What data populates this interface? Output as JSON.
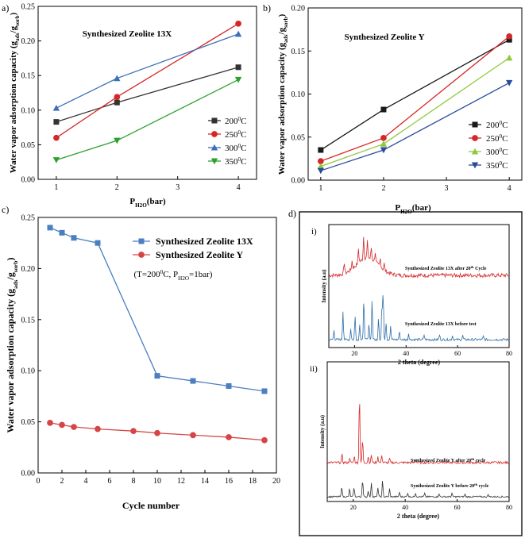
{
  "chart_data": [
    {
      "id": "a",
      "panel_label": "a)",
      "type": "line",
      "title": "Synthesized Zeolite 13X",
      "xlabel_main": "P",
      "xlabel_sub": "H2O",
      "xlabel_tail": "(bar)",
      "ylabel_main": "Water vapor adsorption capacity (g",
      "ylabel_sub1": "ads",
      "ylabel_mid": "/g",
      "ylabel_sub2": "sorb",
      "ylabel_tail": ")",
      "xlim": [
        0.7,
        4.3
      ],
      "ylim": [
        0.0,
        0.25
      ],
      "xticks": [
        1,
        2,
        3,
        4
      ],
      "yticks": [
        0.0,
        0.05,
        0.1,
        0.15,
        0.2,
        0.25
      ],
      "ytick_labels": [
        "0.00",
        "0.05",
        "0.10",
        "0.15",
        "0.20",
        "0.25"
      ],
      "legend_position": "bottom-right",
      "legend_sup": "0",
      "series": [
        {
          "name": "200",
          "unit": "C",
          "color": "#333333",
          "marker": "square",
          "x": [
            1,
            2,
            4
          ],
          "y": [
            0.083,
            0.111,
            0.162
          ]
        },
        {
          "name": "250",
          "unit": "C",
          "color": "#d62728",
          "marker": "circle",
          "x": [
            1,
            2,
            4
          ],
          "y": [
            0.06,
            0.119,
            0.225
          ]
        },
        {
          "name": "300",
          "unit": "C",
          "color": "#3c6fb6",
          "marker": "triangle-up",
          "x": [
            1,
            2,
            4
          ],
          "y": [
            0.103,
            0.146,
            0.21
          ]
        },
        {
          "name": "350",
          "unit": "C",
          "color": "#2ca02c",
          "marker": "triangle-down",
          "x": [
            1,
            2,
            4
          ],
          "y": [
            0.028,
            0.056,
            0.144
          ]
        }
      ]
    },
    {
      "id": "b",
      "panel_label": "b)",
      "type": "line",
      "title": "Synthesized Zeolite Y",
      "xlabel_main": "P",
      "xlabel_sub": "H2O",
      "xlabel_tail": "(bar)",
      "ylabel_main": "Water vapor adsorption capacity (g",
      "ylabel_sub1": "ads",
      "ylabel_mid": "/g",
      "ylabel_sub2": "sorb",
      "ylabel_tail": ")",
      "xlim": [
        0.8,
        4.2
      ],
      "ylim": [
        0.0,
        0.2
      ],
      "xticks": [
        1,
        2,
        3,
        4
      ],
      "yticks": [
        0.0,
        0.05,
        0.1,
        0.15,
        0.2
      ],
      "ytick_labels": [
        "0.00",
        "0.05",
        "0.10",
        "0.15",
        "0.20"
      ],
      "legend_position": "bottom-right",
      "legend_sup": "0",
      "series": [
        {
          "name": "200",
          "unit": "C",
          "color": "#1a1a1a",
          "marker": "square",
          "x": [
            1,
            2,
            4
          ],
          "y": [
            0.035,
            0.082,
            0.163
          ]
        },
        {
          "name": "250",
          "unit": "C",
          "color": "#d62728",
          "marker": "circle",
          "x": [
            1,
            2,
            4
          ],
          "y": [
            0.022,
            0.049,
            0.167
          ]
        },
        {
          "name": "300",
          "unit": "C",
          "color": "#8fc93a",
          "marker": "triangle-up",
          "x": [
            1,
            2,
            4
          ],
          "y": [
            0.016,
            0.042,
            0.142
          ]
        },
        {
          "name": "350",
          "unit": "C",
          "color": "#2a4b9b",
          "marker": "triangle-down",
          "x": [
            1,
            2,
            4
          ],
          "y": [
            0.011,
            0.035,
            0.113
          ]
        }
      ]
    },
    {
      "id": "c",
      "panel_label": "c)",
      "type": "line",
      "xlabel": "Cycle number",
      "ylabel_main": "Water vapor adsorption capacity (g",
      "ylabel_sub1": "ads",
      "ylabel_mid": "/g",
      "ylabel_sub2": "sorb",
      "ylabel_tail": ")",
      "xlim": [
        0,
        20
      ],
      "ylim": [
        0.0,
        0.25
      ],
      "xticks": [
        0,
        2,
        4,
        6,
        8,
        10,
        12,
        14,
        16,
        18,
        20
      ],
      "yticks": [
        0.0,
        0.05,
        0.1,
        0.15,
        0.2,
        0.25
      ],
      "ytick_labels": [
        "0.00",
        "0.05",
        "0.10",
        "0.15",
        "0.20",
        "0.25"
      ],
      "legend_position": "top-right",
      "annotation": {
        "a": "(T=200",
        "sup": "0",
        "b": "C,  P",
        "sub": "H2O",
        "c": "=1bar)"
      },
      "series": [
        {
          "name": "Synthesized Zeolite 13X",
          "color": "#4a7fc1",
          "marker": "square",
          "x": [
            1,
            2,
            3,
            5,
            10,
            13,
            16,
            19
          ],
          "y": [
            0.24,
            0.235,
            0.23,
            0.225,
            0.095,
            0.09,
            0.085,
            0.08
          ]
        },
        {
          "name": "Synthesized Zeolite Y",
          "color": "#d64545",
          "marker": "circle",
          "x": [
            1,
            2,
            3,
            5,
            8,
            10,
            13,
            16,
            19
          ],
          "y": [
            0.049,
            0.047,
            0.045,
            0.043,
            0.041,
            0.039,
            0.037,
            0.035,
            0.032
          ]
        }
      ]
    },
    {
      "id": "d",
      "panel_label": "d)",
      "type": "line",
      "subpanels": [
        {
          "label": "i)",
          "xlabel": "2 theta (degree)",
          "ylabel": "Intensity (a.u)",
          "xlim": [
            10,
            80
          ],
          "xticks": [
            20,
            40,
            60,
            80
          ],
          "traces": [
            {
              "name_a": "Synthesized Zeolite 13X after 20",
              "name_sup": "th",
              "name_b": " Cycle",
              "color": "#d62728"
            },
            {
              "name_a": "Synthesized Zeolite 13X before test",
              "name_sup": "",
              "name_b": "",
              "color": "#2f6ea8"
            }
          ]
        },
        {
          "label": "ii)",
          "xlabel": "2 theta (degree)",
          "ylabel": "Intensity (a.u)",
          "xlim": [
            10,
            80
          ],
          "xticks": [
            20,
            40,
            60,
            80
          ],
          "traces": [
            {
              "name_a": "Synthesized Zeolite Y after 20",
              "name_sup": "th",
              "name_b": " cycle",
              "color": "#d62728"
            },
            {
              "name_a": "Synthesized Zeolite Y before 20",
              "name_sup": "th",
              "name_b": " cycle",
              "color": "#333333"
            }
          ]
        }
      ]
    }
  ]
}
